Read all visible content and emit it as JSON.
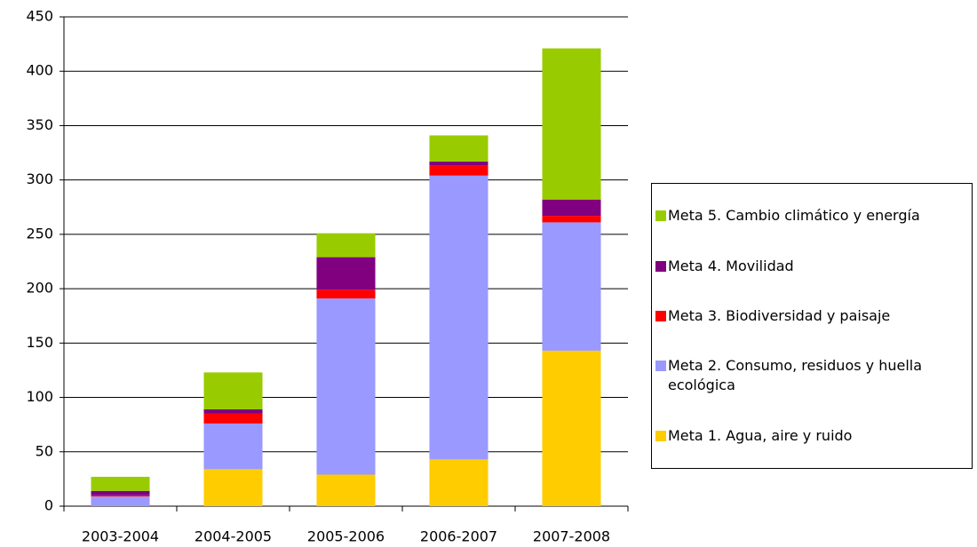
{
  "chart_data": {
    "type": "stacked_bar",
    "categories": [
      "2003-2004",
      "2004-2005",
      "2005-2006",
      "2006-2007",
      "2007-2008"
    ],
    "series": [
      {
        "name": "Meta 1. Agua, aire y ruido",
        "color": "#ffcc00",
        "values": [
          0,
          34,
          29,
          43,
          143
        ]
      },
      {
        "name": "Meta 2. Consumo, residuos y huella ecológica",
        "color": "#9999ff",
        "values": [
          9,
          42,
          162,
          261,
          118
        ]
      },
      {
        "name": "Meta 3. Biodiversidad y paisaje",
        "color": "#ff0000",
        "values": [
          1,
          9,
          8,
          9,
          6
        ]
      },
      {
        "name": "Meta 4. Movilidad",
        "color": "#800080",
        "values": [
          4,
          4,
          30,
          4,
          15
        ]
      },
      {
        "name": "Meta 5. Cambio climático y energía",
        "color": "#99cc00",
        "values": [
          13,
          34,
          22,
          24,
          139
        ]
      }
    ],
    "ylim": [
      0,
      450
    ],
    "yticks": [
      0,
      50,
      100,
      150,
      200,
      250,
      300,
      350,
      400,
      450
    ],
    "grid": true,
    "legend": "right"
  }
}
